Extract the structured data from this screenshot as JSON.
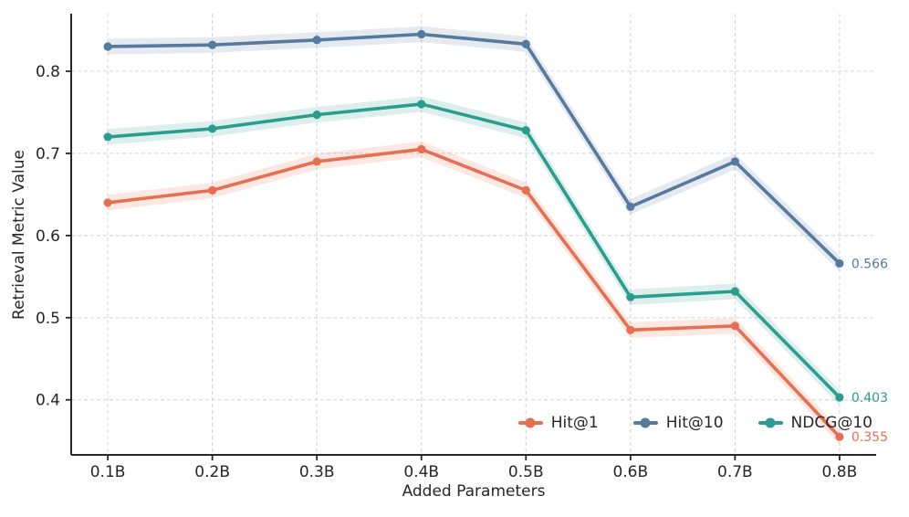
{
  "figure": {
    "background": "#ffffff",
    "axis_color": "#262626",
    "grid_color": "#d9d9d9"
  },
  "chart_data": {
    "type": "line",
    "title": "",
    "xlabel": "Added Parameters",
    "ylabel": "Retrieval Metric Value",
    "x": [
      0.1,
      0.2,
      0.3,
      0.4,
      0.5,
      0.6,
      0.7,
      0.8
    ],
    "xticklabels": [
      "0.1B",
      "0.2B",
      "0.3B",
      "0.4B",
      "0.5B",
      "0.6B",
      "0.7B",
      "0.8B"
    ],
    "yticks": [
      0.4,
      0.5,
      0.6,
      0.7,
      0.8
    ],
    "yticklabels": [
      "0.4",
      "0.5",
      "0.6",
      "0.7",
      "0.8"
    ],
    "xlim": [
      0.065,
      0.835
    ],
    "ylim": [
      0.333,
      0.87
    ],
    "grid": true,
    "grid_style": "dashed",
    "legend_position": "lower right",
    "band_halfwidth": 0.0095,
    "series": [
      {
        "name": "Hit@1",
        "color": "#E76F51",
        "values": [
          0.64,
          0.655,
          0.69,
          0.705,
          0.655,
          0.485,
          0.49,
          0.355
        ],
        "end_label": "0.355"
      },
      {
        "name": "Hit@10",
        "color": "#567A9D",
        "values": [
          0.83,
          0.832,
          0.838,
          0.845,
          0.833,
          0.635,
          0.69,
          0.566
        ],
        "end_label": "0.566"
      },
      {
        "name": "NDCG@10",
        "color": "#2A9D8F",
        "values": [
          0.72,
          0.73,
          0.747,
          0.76,
          0.728,
          0.525,
          0.532,
          0.403
        ],
        "end_label": "0.403"
      }
    ]
  }
}
